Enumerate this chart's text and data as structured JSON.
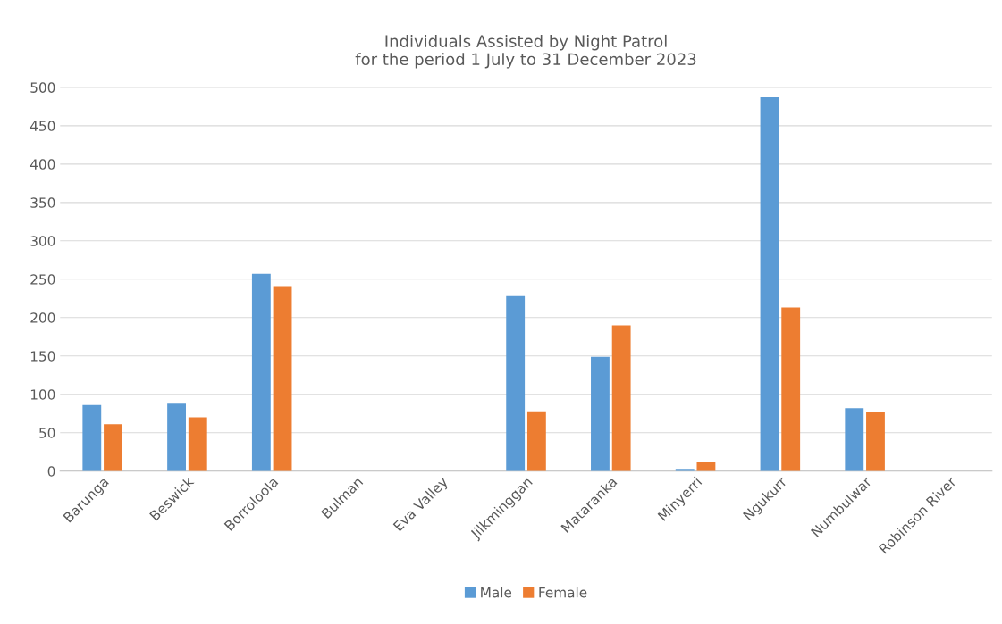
{
  "chart_data": {
    "type": "bar",
    "title": "Individuals Assisted by Night Patrol\nfor the period 1 July to 31 December 2023",
    "categories": [
      "Barunga",
      "Beswick",
      "Borroloola",
      "Bulman",
      "Eva Valley",
      "Jilkminggan",
      "Mataranka",
      "Minyerri",
      "Ngukurr",
      "Numbulwar",
      "Robinson River"
    ],
    "series": [
      {
        "name": "Male",
        "color": "#5b9bd5",
        "values": [
          86,
          89,
          257,
          null,
          null,
          228,
          149,
          3,
          487,
          82,
          null
        ]
      },
      {
        "name": "Female",
        "color": "#ed7d31",
        "values": [
          61,
          70,
          241,
          null,
          null,
          78,
          190,
          12,
          213,
          77,
          null
        ]
      }
    ],
    "ylim": [
      0,
      500
    ],
    "yticks": [
      0,
      50,
      100,
      150,
      200,
      250,
      300,
      350,
      400,
      450,
      500
    ],
    "grid": "y",
    "legend": "bottom"
  }
}
